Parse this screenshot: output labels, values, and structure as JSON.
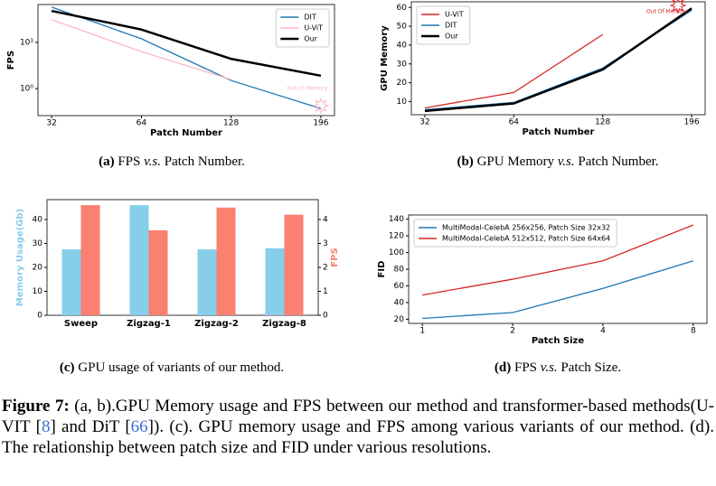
{
  "chart_data": [
    {
      "type": "line",
      "xlabel": "Patch Number",
      "ylabel": "FPS",
      "log_y": true,
      "categories": [
        "32",
        "64",
        "128",
        "196"
      ],
      "series": [
        {
          "name": "DIT",
          "color": "#1f77b4",
          "values": [
            58,
            12,
            1.5,
            0.37
          ]
        },
        {
          "name": "U-ViT",
          "color": "#ffb6c1",
          "values": [
            31,
            6.3,
            1.57,
            null
          ]
        },
        {
          "name": "Our",
          "color": "#000000",
          "values": [
            48,
            19,
            4.4,
            1.9
          ]
        }
      ],
      "ylim": [
        0.26,
        66
      ],
      "yticks": [
        {
          "value": 1,
          "label": "10⁰"
        },
        {
          "value": 10,
          "label": "10¹"
        }
      ],
      "legend": "upper right",
      "annotation": "Out of Memory",
      "caption": {
        "label": "(a)",
        "text": "FPS",
        "vs": "v.s.",
        "rest": "Patch Number."
      }
    },
    {
      "type": "line",
      "xlabel": "Patch Number",
      "ylabel": "GPU Memory",
      "categories": [
        "32",
        "64",
        "128",
        "196"
      ],
      "series": [
        {
          "name": "U-ViT",
          "color": "#d62728",
          "values": [
            6.6,
            14.8,
            45.6,
            null
          ]
        },
        {
          "name": "DIT",
          "color": "#1f77b4",
          "values": [
            5.7,
            9.5,
            27.8,
            58.5
          ]
        },
        {
          "name": "Our",
          "color": "#000000",
          "values": [
            5,
            9,
            27,
            59.5
          ]
        }
      ],
      "ylim": [
        3,
        63
      ],
      "yticks": [
        10,
        20,
        30,
        40,
        50,
        60
      ],
      "legend": "upper left",
      "annotation": "Out Of Memory",
      "caption": {
        "label": "(b)",
        "text": "GPU Memory",
        "vs": "v.s.",
        "rest": "Patch Number."
      }
    },
    {
      "type": "bar",
      "ylabel": "Memory Usage(Gb)",
      "y2label": "FPS",
      "categories": [
        "Sweep",
        "Zigzag-1",
        "Zigzag-2",
        "Zigzag-8"
      ],
      "series": [
        {
          "color": "#87ceeb",
          "values": [
            27.5,
            46,
            27.5,
            28
          ]
        },
        {
          "color": "#fa8072",
          "axis": "y2",
          "values": [
            4.6,
            3.55,
            4.5,
            4.2
          ]
        }
      ],
      "ylim": [
        0,
        48.3
      ],
      "yticks": [
        0,
        10,
        20,
        30,
        40
      ],
      "y2lim": [
        0,
        4.83
      ],
      "y2ticks": [
        0,
        1,
        2,
        3,
        4
      ],
      "caption": {
        "label": "(c)",
        "text": "GPU usage of variants of our method."
      }
    },
    {
      "type": "line",
      "xlabel": "Patch Size",
      "ylabel": "FID",
      "categories": [
        "1",
        "2",
        "4",
        "8"
      ],
      "series": [
        {
          "name": "MultiModal-CelebA 256x256, Patch Size 32x32",
          "color": "#1f77b4",
          "values": [
            21,
            28,
            57,
            90
          ]
        },
        {
          "name": "MultiModal-CelebA 512x512, Patch Size 64x64",
          "color": "#d62728",
          "values": [
            49,
            68,
            90,
            133
          ]
        }
      ],
      "ylim": [
        15,
        145
      ],
      "yticks": [
        20,
        40,
        60,
        80,
        100,
        120,
        140
      ],
      "legend": "upper left",
      "caption": {
        "label": "(d)",
        "text": "FPS",
        "vs": "v.s.",
        "rest": "Patch Size."
      }
    }
  ],
  "figure_caption": {
    "label": "Figure 7:",
    "part1": "(a, b).GPU Memory usage and FPS between our method and transformer-based methods(U-VIT [",
    "ref1": "8",
    "part2": "] and DiT [",
    "ref2": "66",
    "part3": "]). (c). GPU memory usage and FPS among various variants of our method. (d). The relationship between patch size and FID under various resolutions."
  }
}
